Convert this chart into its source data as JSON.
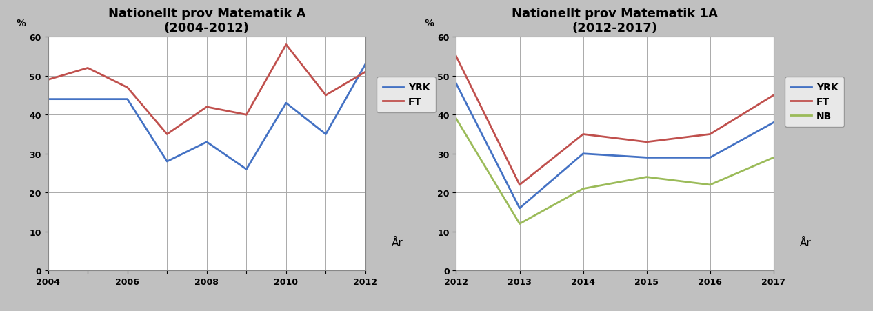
{
  "chart1": {
    "title": "Nationellt prov Matematik A",
    "subtitle": "(2004-2012)",
    "ar_label": "År",
    "ylabel": "%",
    "xlim": [
      2004,
      2012
    ],
    "ylim": [
      0,
      60
    ],
    "yticks": [
      0,
      10,
      20,
      30,
      40,
      50,
      60
    ],
    "xticks": [
      2004,
      2005,
      2006,
      2007,
      2008,
      2009,
      2010,
      2011,
      2012
    ],
    "xtick_labels": [
      "2004",
      "",
      "2006",
      "",
      "2008",
      "",
      "2010",
      "",
      "2012"
    ],
    "series": {
      "YRK": {
        "x": [
          2004,
          2005,
          2006,
          2007,
          2008,
          2009,
          2010,
          2011,
          2012
        ],
        "y": [
          44,
          44,
          44,
          28,
          33,
          26,
          43,
          35,
          53
        ],
        "color": "#4472C4",
        "linewidth": 2.0
      },
      "FT": {
        "x": [
          2004,
          2005,
          2006,
          2007,
          2008,
          2009,
          2010,
          2011,
          2012
        ],
        "y": [
          49,
          52,
          47,
          35,
          42,
          40,
          58,
          45,
          51
        ],
        "color": "#C0504D",
        "linewidth": 2.0
      }
    }
  },
  "chart2": {
    "title": "Nationellt prov Matematik 1A",
    "subtitle": "(2012-2017)",
    "ar_label": "År",
    "ylabel": "%",
    "xlim": [
      2012,
      2017
    ],
    "ylim": [
      0,
      60
    ],
    "yticks": [
      0,
      10,
      20,
      30,
      40,
      50,
      60
    ],
    "xticks": [
      2012,
      2013,
      2014,
      2015,
      2016,
      2017
    ],
    "xtick_labels": [
      "2012",
      "2013",
      "2014",
      "2015",
      "2016",
      "2017"
    ],
    "series": {
      "YRK": {
        "x": [
          2012,
          2013,
          2014,
          2015,
          2016,
          2017
        ],
        "y": [
          48,
          16,
          30,
          29,
          29,
          38
        ],
        "color": "#4472C4",
        "linewidth": 2.0
      },
      "FT": {
        "x": [
          2012,
          2013,
          2014,
          2015,
          2016,
          2017
        ],
        "y": [
          55,
          22,
          35,
          33,
          35,
          45
        ],
        "color": "#C0504D",
        "linewidth": 2.0
      },
      "NB": {
        "x": [
          2012,
          2013,
          2014,
          2015,
          2016,
          2017
        ],
        "y": [
          39,
          12,
          21,
          24,
          22,
          29
        ],
        "color": "#9BBB59",
        "linewidth": 2.0
      }
    }
  },
  "background_color": "#C0C0C0",
  "plot_bg_color": "#FFFFFF",
  "title_fontsize": 13,
  "subtitle_fontsize": 11,
  "tick_fontsize": 9,
  "legend_fontsize": 10,
  "ylabel_fontsize": 10,
  "ar_fontsize": 11
}
